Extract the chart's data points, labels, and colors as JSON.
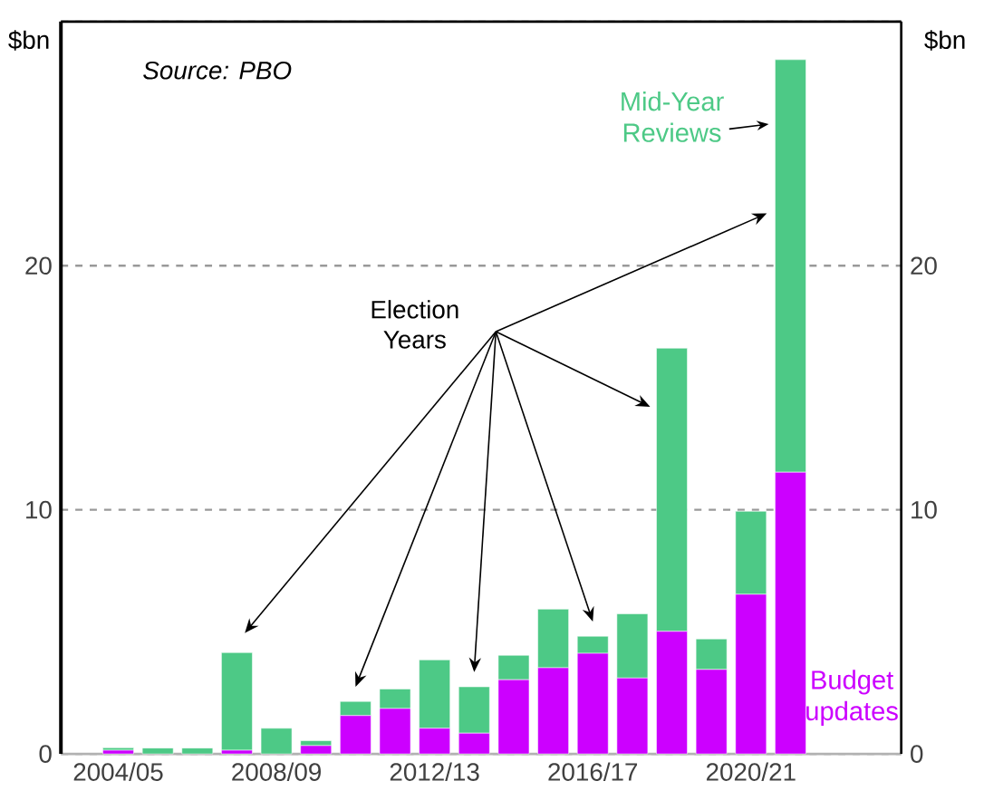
{
  "chart_data": {
    "type": "bar",
    "stacked": true,
    "categories": [
      "2004/05",
      null,
      null,
      null,
      "2008/09",
      null,
      null,
      null,
      "2012/13",
      null,
      null,
      null,
      "2016/17",
      null,
      null,
      null,
      "2020/21",
      null
    ],
    "series": [
      {
        "name": "Budget updates",
        "color": "#cc00ff",
        "values": [
          0.15,
          0,
          0,
          0.15,
          0,
          0.34,
          1.57,
          1.86,
          1.05,
          0.85,
          3.04,
          3.53,
          4.12,
          3.11,
          5.02,
          3.46,
          6.54,
          11.54
        ]
      },
      {
        "name": "Mid-Year Reviews",
        "color": "#4dc986",
        "values": [
          0.1,
          0.24,
          0.24,
          4.0,
          1.05,
          0.2,
          0.58,
          0.8,
          2.8,
          1.9,
          1.0,
          2.4,
          0.7,
          2.63,
          11.6,
          1.25,
          3.4,
          16.9
        ]
      }
    ],
    "ylim": [
      0,
      30
    ],
    "yticks": [
      {
        "value": 0,
        "label": "0"
      },
      {
        "value": 10,
        "label": "10"
      },
      {
        "value": 20,
        "label": "20"
      },
      {
        "value": 30,
        "label": null
      }
    ],
    "y2lim": [
      0,
      30
    ],
    "y2ticks": [
      {
        "value": 0,
        "label": "0"
      },
      {
        "value": 10,
        "label": "10"
      },
      {
        "value": 20,
        "label": "20"
      },
      {
        "value": 30,
        "label": null
      }
    ],
    "ylabel": "$bn",
    "y2label": "$bn",
    "grid": "y",
    "annotations": [
      "Source: PBO",
      "Election Years"
    ]
  }
}
